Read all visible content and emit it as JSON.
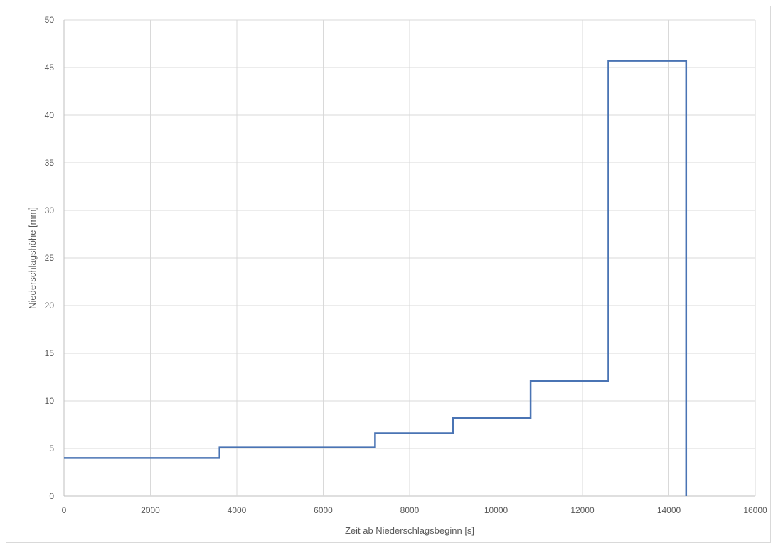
{
  "chart_data": {
    "type": "line",
    "title": "",
    "xlabel": "Zeit ab Niederschlagsbeginn [s]",
    "ylabel": "Niederschlagshöhe [mm]",
    "xlim": [
      0,
      16000
    ],
    "ylim": [
      0,
      50
    ],
    "x_ticks": [
      0,
      2000,
      4000,
      6000,
      8000,
      10000,
      12000,
      14000,
      16000
    ],
    "y_ticks": [
      0,
      5,
      10,
      15,
      20,
      25,
      30,
      35,
      40,
      45,
      50
    ],
    "grid": true,
    "legend": "none",
    "series": [
      {
        "color": "#4a74b4",
        "step": "post",
        "points": [
          {
            "x": 0,
            "y": 4.0
          },
          {
            "x": 3600,
            "y": 5.1
          },
          {
            "x": 7200,
            "y": 6.6
          },
          {
            "x": 9000,
            "y": 8.2
          },
          {
            "x": 10800,
            "y": 12.1
          },
          {
            "x": 12600,
            "y": 45.7
          },
          {
            "x": 14400,
            "y": 0
          }
        ]
      }
    ]
  }
}
